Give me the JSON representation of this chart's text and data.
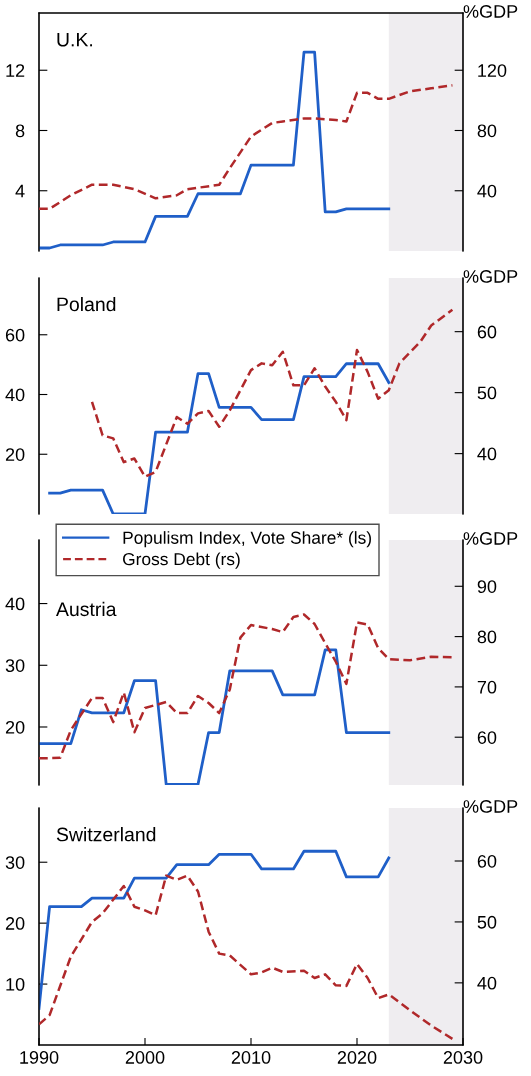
{
  "chart_data": [
    {
      "type": "line",
      "title": "U.K.",
      "y2label": "%GDP",
      "xlim": [
        1990,
        2030
      ],
      "ylim": [
        0,
        15.8
      ],
      "yticks": [
        4,
        8,
        12
      ],
      "y2lim": [
        0,
        158
      ],
      "y2ticks": [
        40,
        80,
        120
      ],
      "tick_labels": "y",
      "legend": false,
      "bands": [
        {
          "axis": "x",
          "from": 2023,
          "to": 2030,
          "color": "#efedf0"
        }
      ],
      "series": [
        {
          "color": "#1f5fc8",
          "line_style": "solid",
          "axis": "y",
          "x": [
            1990,
            1991,
            1992,
            1996,
            1997,
            2000,
            2001,
            2004,
            2005,
            2009,
            2010,
            2014,
            2015,
            2016,
            2017,
            2018,
            2019,
            2023
          ],
          "values": [
            0.2,
            0.2,
            0.4,
            0.4,
            0.6,
            0.6,
            2.3,
            2.3,
            3.8,
            3.8,
            5.7,
            5.7,
            13.2,
            13.2,
            2.6,
            2.6,
            2.8,
            2.8
          ]
        },
        {
          "color": "#b0282a",
          "line_style": "dashed",
          "axis": "y2",
          "x": [
            1990,
            1991,
            1993,
            1995,
            1997,
            1999,
            2001,
            2003,
            2004,
            2007,
            2008,
            2010,
            2012,
            2013,
            2015,
            2016,
            2018,
            2019,
            2020,
            2021,
            2022,
            2023,
            2025,
            2027,
            2029
          ],
          "values": [
            28,
            28,
            37,
            44,
            44,
            41,
            35,
            37,
            41,
            44,
            55,
            76,
            85,
            86,
            88,
            88,
            87,
            86,
            105,
            105,
            101,
            101,
            106,
            108,
            110
          ]
        }
      ]
    },
    {
      "type": "line",
      "title": "Poland",
      "y2label": "%GDP",
      "xlim": [
        1990,
        2030
      ],
      "ylim": [
        0,
        79
      ],
      "yticks": [
        20,
        40,
        60
      ],
      "y2lim": [
        30.1,
        68.8
      ],
      "y2ticks": [
        40,
        50,
        60
      ],
      "tick_labels": "y",
      "legend": false,
      "bands": [
        {
          "axis": "x",
          "from": 2023,
          "to": 2030,
          "color": "#efedf0"
        }
      ],
      "series": [
        {
          "color": "#1f5fc8",
          "line_style": "solid",
          "axis": "y",
          "x": [
            1991,
            1992,
            1993,
            1996,
            1997,
            2000,
            2001,
            2004,
            2005,
            2006,
            2007,
            2010,
            2011,
            2014,
            2015,
            2018,
            2019,
            2022,
            2023
          ],
          "values": [
            7,
            7,
            8,
            8,
            0,
            0,
            27.4,
            27.4,
            47,
            47,
            35.7,
            35.7,
            31.6,
            31.6,
            46,
            46,
            50.3,
            50.3,
            44
          ]
        },
        {
          "color": "#b0282a",
          "line_style": "dashed",
          "axis": "y2",
          "x": [
            1995,
            1996,
            1997,
            1998,
            1999,
            2000,
            2001,
            2003,
            2004,
            2005,
            2006,
            2007,
            2008,
            2010,
            2011,
            2012,
            2013,
            2014,
            2015,
            2016,
            2017,
            2018,
            2019,
            2020,
            2021,
            2022,
            2023,
            2024,
            2026,
            2027,
            2029
          ],
          "values": [
            48.5,
            43,
            42.5,
            38.6,
            39.2,
            36.2,
            37,
            46,
            44.9,
            46.6,
            47,
            44.4,
            47.1,
            53.7,
            54.8,
            54.5,
            56.7,
            51.2,
            51.2,
            54,
            51,
            48.5,
            45.5,
            57,
            53.4,
            49,
            50.4,
            54.8,
            58.4,
            61,
            63.6
          ]
        }
      ]
    },
    {
      "type": "line",
      "title": "Austria",
      "y2label": "%GDP",
      "xlim": [
        1990,
        2030
      ],
      "ylim": [
        10.6,
        50.3
      ],
      "yticks": [
        20,
        30,
        40
      ],
      "y2lim": [
        50.5,
        99.2
      ],
      "y2ticks": [
        60,
        70,
        80,
        90
      ],
      "tick_labels": "y",
      "legend": "top left",
      "bands": [
        {
          "axis": "x",
          "from": 2023,
          "to": 2030,
          "color": "#efedf0"
        }
      ],
      "series": [
        {
          "name": "Populism Index, Vote Share* (ls)",
          "color": "#1f5fc8",
          "line_style": "solid",
          "axis": "y",
          "x": [
            1990,
            1993,
            1994,
            1995,
            1998,
            1999,
            2001,
            2002,
            2005,
            2006,
            2007,
            2008,
            2012,
            2013,
            2016,
            2017,
            2018,
            2019,
            2023
          ],
          "values": [
            17.3,
            17.3,
            22.8,
            22.3,
            22.3,
            27.5,
            27.5,
            10.7,
            10.7,
            19.1,
            19.1,
            29.1,
            29.1,
            25.2,
            25.2,
            32.5,
            32.5,
            19.1,
            19.1
          ]
        },
        {
          "name": "Gross Debt (rs)",
          "color": "#b0282a",
          "line_style": "dashed",
          "axis": "y2",
          "x": [
            1990,
            1992,
            1993,
            1995,
            1996,
            1997,
            1998,
            1999,
            2000,
            2002,
            2003,
            2004,
            2005,
            2006,
            2007,
            2008,
            2009,
            2010,
            2012,
            2013,
            2014,
            2015,
            2016,
            2017,
            2018,
            2019,
            2020,
            2021,
            2022,
            2023,
            2025,
            2027,
            2029
          ],
          "values": [
            55.8,
            55.9,
            61.4,
            67.8,
            67.8,
            63,
            68.9,
            61,
            65.8,
            67,
            64.8,
            64.8,
            68.2,
            66.8,
            64.8,
            69.5,
            79.8,
            82.3,
            81.5,
            80.9,
            83.9,
            84.4,
            82.5,
            78.7,
            75,
            70.6,
            82.8,
            82.4,
            77.7,
            75.5,
            75.3,
            76,
            75.9
          ]
        }
      ]
    },
    {
      "type": "line",
      "title": "Switzerland",
      "y2label": "%GDP",
      "xlim": [
        1990,
        2030
      ],
      "xticks": [
        1990,
        2000,
        2010,
        2020,
        2030
      ],
      "ylim": [
        0,
        38.9
      ],
      "yticks": [
        10,
        20,
        30
      ],
      "y2lim": [
        29.8,
        68.7
      ],
      "y2ticks": [
        40,
        50,
        60
      ],
      "legend": false,
      "bands": [
        {
          "axis": "x",
          "from": 2023,
          "to": 2030,
          "color": "#efedf0"
        }
      ],
      "series": [
        {
          "color": "#1f5fc8",
          "line_style": "solid",
          "axis": "y",
          "x": [
            1990,
            1991,
            1994,
            1995,
            1998,
            1999,
            2002,
            2003,
            2006,
            2007,
            2010,
            2011,
            2014,
            2015,
            2018,
            2019,
            2022,
            2023
          ],
          "values": [
            6,
            22.7,
            22.7,
            24.1,
            24.1,
            27.4,
            27.4,
            29.6,
            29.6,
            31.3,
            31.3,
            28.9,
            28.9,
            31.8,
            31.8,
            27.6,
            27.6,
            30.7
          ]
        },
        {
          "color": "#b0282a",
          "line_style": "dashed",
          "axis": "y2",
          "x": [
            1990,
            1991,
            1993,
            1995,
            1996,
            1998,
            1999,
            2000,
            2001,
            2002,
            2003,
            2004,
            2005,
            2006,
            2007,
            2008,
            2010,
            2011,
            2012,
            2013,
            2015,
            2016,
            2017,
            2018,
            2019,
            2020,
            2021,
            2022,
            2023,
            2025,
            2027,
            2029
          ],
          "values": [
            33.2,
            34.7,
            44.3,
            50,
            51.4,
            55.9,
            52.5,
            51.9,
            51.1,
            57.6,
            56.9,
            57.6,
            55,
            48.4,
            44.8,
            44.5,
            41.4,
            41.7,
            42.5,
            41.8,
            42,
            40.8,
            41.4,
            39.6,
            39.5,
            43.1,
            40.8,
            37.5,
            38.1,
            35.5,
            33,
            30.8
          ]
        }
      ]
    }
  ]
}
